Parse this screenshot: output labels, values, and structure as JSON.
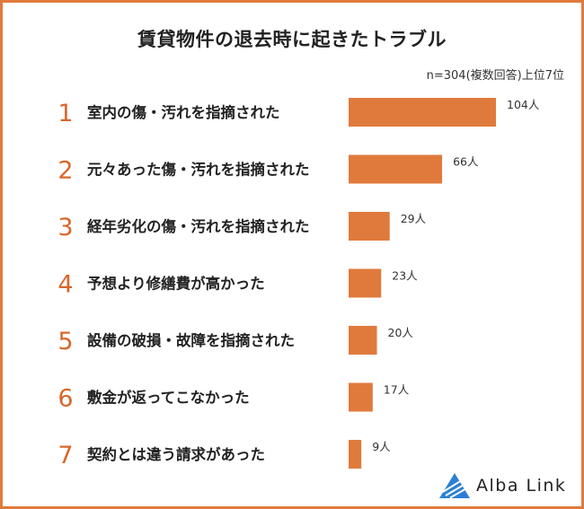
{
  "title": "賃貸物件の退去時に起きたトラブル",
  "note": "n=304(複数回答)上位7位",
  "brand": "Alba Link",
  "colors": {
    "bar": "#e07a3c",
    "rank": "#d9662a",
    "border": "#e07a3c",
    "logo": "#2b7fd6"
  },
  "chart_data": {
    "type": "bar",
    "orientation": "horizontal",
    "title": "賃貸物件の退去時に起きたトラブル",
    "categories": [
      "室内の傷・汚れを指摘された",
      "元々あった傷・汚れを指摘された",
      "経年劣化の傷・汚れを指摘された",
      "予想より修繕費が高かった",
      "設備の破損・故障を指摘された",
      "敷金が返ってこなかった",
      "契約とは違う請求があった"
    ],
    "ranks": [
      "1",
      "2",
      "3",
      "4",
      "5",
      "6",
      "7"
    ],
    "values": [
      104,
      66,
      29,
      23,
      20,
      17,
      9
    ],
    "value_labels": [
      "104人",
      "66人",
      "29人",
      "23人",
      "20人",
      "17人",
      "9人"
    ],
    "unit": "人",
    "xlim": [
      0,
      104
    ]
  }
}
